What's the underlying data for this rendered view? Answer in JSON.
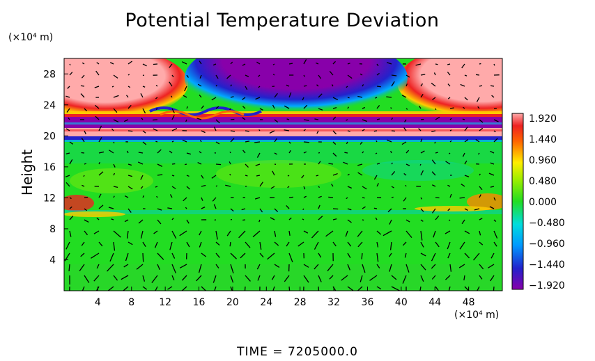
{
  "chart_data": {
    "type": "heatmap",
    "title": "Potential Temperature Deviation",
    "ylabel": "Height",
    "y_unit": "(×10⁴ m)",
    "x_unit": "(×10⁴ m)",
    "time_label": "TIME  =  7205000.0",
    "x_ticks": [
      4,
      8,
      12,
      16,
      20,
      24,
      28,
      32,
      36,
      40,
      44,
      48
    ],
    "y_ticks": [
      4,
      8,
      12,
      16,
      20,
      24,
      28
    ],
    "xlim": [
      0,
      52
    ],
    "ylim": [
      0,
      30
    ],
    "colorbar": {
      "labels": [
        "1.920",
        "1.440",
        "0.960",
        "0.480",
        "0.000",
        "−0.480",
        "−0.960",
        "−1.440",
        "−1.920"
      ],
      "range": [
        -1.92,
        1.92
      ]
    },
    "overlay": "velocity vectors",
    "colors": {
      "background_field": "#22dd22",
      "positive_max": "#ffaaaa",
      "negative_max": "#8800aa"
    }
  }
}
